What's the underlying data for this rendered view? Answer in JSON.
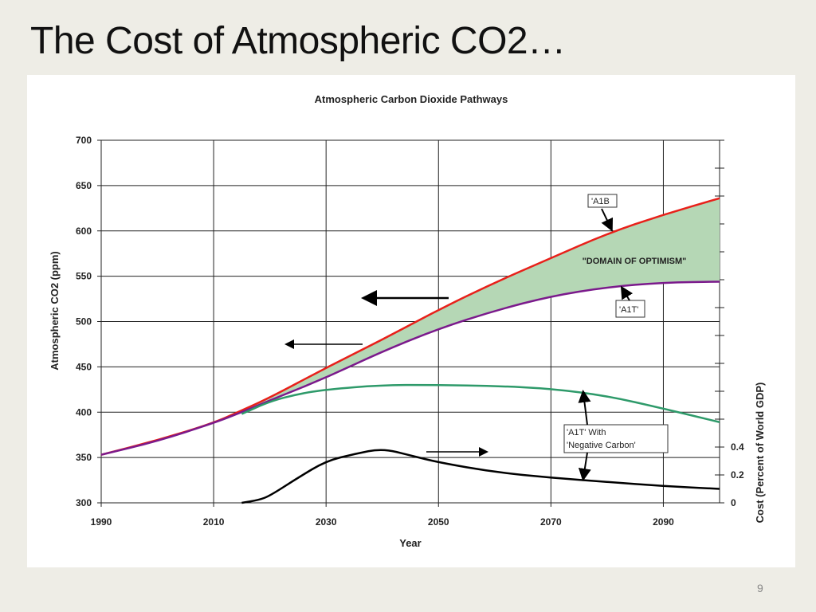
{
  "slide": {
    "title": "The Cost of Atmospheric CO2…",
    "page_number": "9"
  },
  "chart_data": {
    "type": "line",
    "title": "Atmospheric Carbon Dioxide Pathways",
    "xlabel": "Year",
    "ylabel": "Atmospheric CO2 (ppm)",
    "y2label": "Cost (Percent of World GDP)",
    "xlim": [
      1990,
      2100
    ],
    "ylim": [
      300,
      700
    ],
    "y2lim": [
      0,
      2.6
    ],
    "xticks": [
      1990,
      2010,
      2030,
      2050,
      2070,
      2090
    ],
    "yticks": [
      300,
      350,
      400,
      450,
      500,
      550,
      600,
      650,
      700
    ],
    "y2ticks_labeled": [
      "0",
      "0.2",
      "0.4"
    ],
    "grid": true,
    "series": [
      {
        "axis": "left",
        "color": "#e8201a",
        "x": [
          1990,
          2000,
          2010,
          2015,
          2020,
          2030,
          2040,
          2050,
          2060,
          2070,
          2080,
          2090,
          2100
        ],
        "y": [
          353,
          369,
          388,
          402,
          416,
          449,
          480,
          513,
          543,
          570,
          597,
          618,
          636
        ]
      },
      {
        "axis": "left",
        "color": "#7b1a8c",
        "x": [
          1990,
          2000,
          2010,
          2015,
          2020,
          2030,
          2040,
          2050,
          2060,
          2070,
          2080,
          2090,
          2100
        ],
        "y": [
          353,
          368,
          388,
          400,
          413,
          438,
          467,
          492,
          512,
          528,
          538,
          543,
          544
        ]
      },
      {
        "axis": "left",
        "color": "#2e9a6a",
        "x": [
          2015,
          2020,
          2025,
          2030,
          2040,
          2050,
          2060,
          2070,
          2080,
          2090,
          2100
        ],
        "y": [
          398,
          412,
          420,
          425,
          430,
          430,
          429,
          426,
          418,
          404,
          389
        ]
      },
      {
        "axis": "right",
        "color": "#000000",
        "x": [
          2015,
          2018,
          2020,
          2025,
          2030,
          2035,
          2040,
          2045,
          2050,
          2060,
          2070,
          2080,
          2090,
          2100
        ],
        "y": [
          0,
          0.02,
          0.05,
          0.18,
          0.3,
          0.35,
          0.39,
          0.34,
          0.29,
          0.22,
          0.18,
          0.15,
          0.12,
          0.1
        ]
      }
    ],
    "shaded_region": {
      "label": "\"DOMAIN OF OPTIMISM\"",
      "color": "#b5d7b5"
    },
    "annotations": {
      "a1b": "'A1B",
      "a1t": "'A1T'",
      "neg_line1": "'A1T' With",
      "neg_line2": "'Negative Carbon'",
      "domain": "\"DOMAIN OF OPTIMISM\""
    }
  }
}
